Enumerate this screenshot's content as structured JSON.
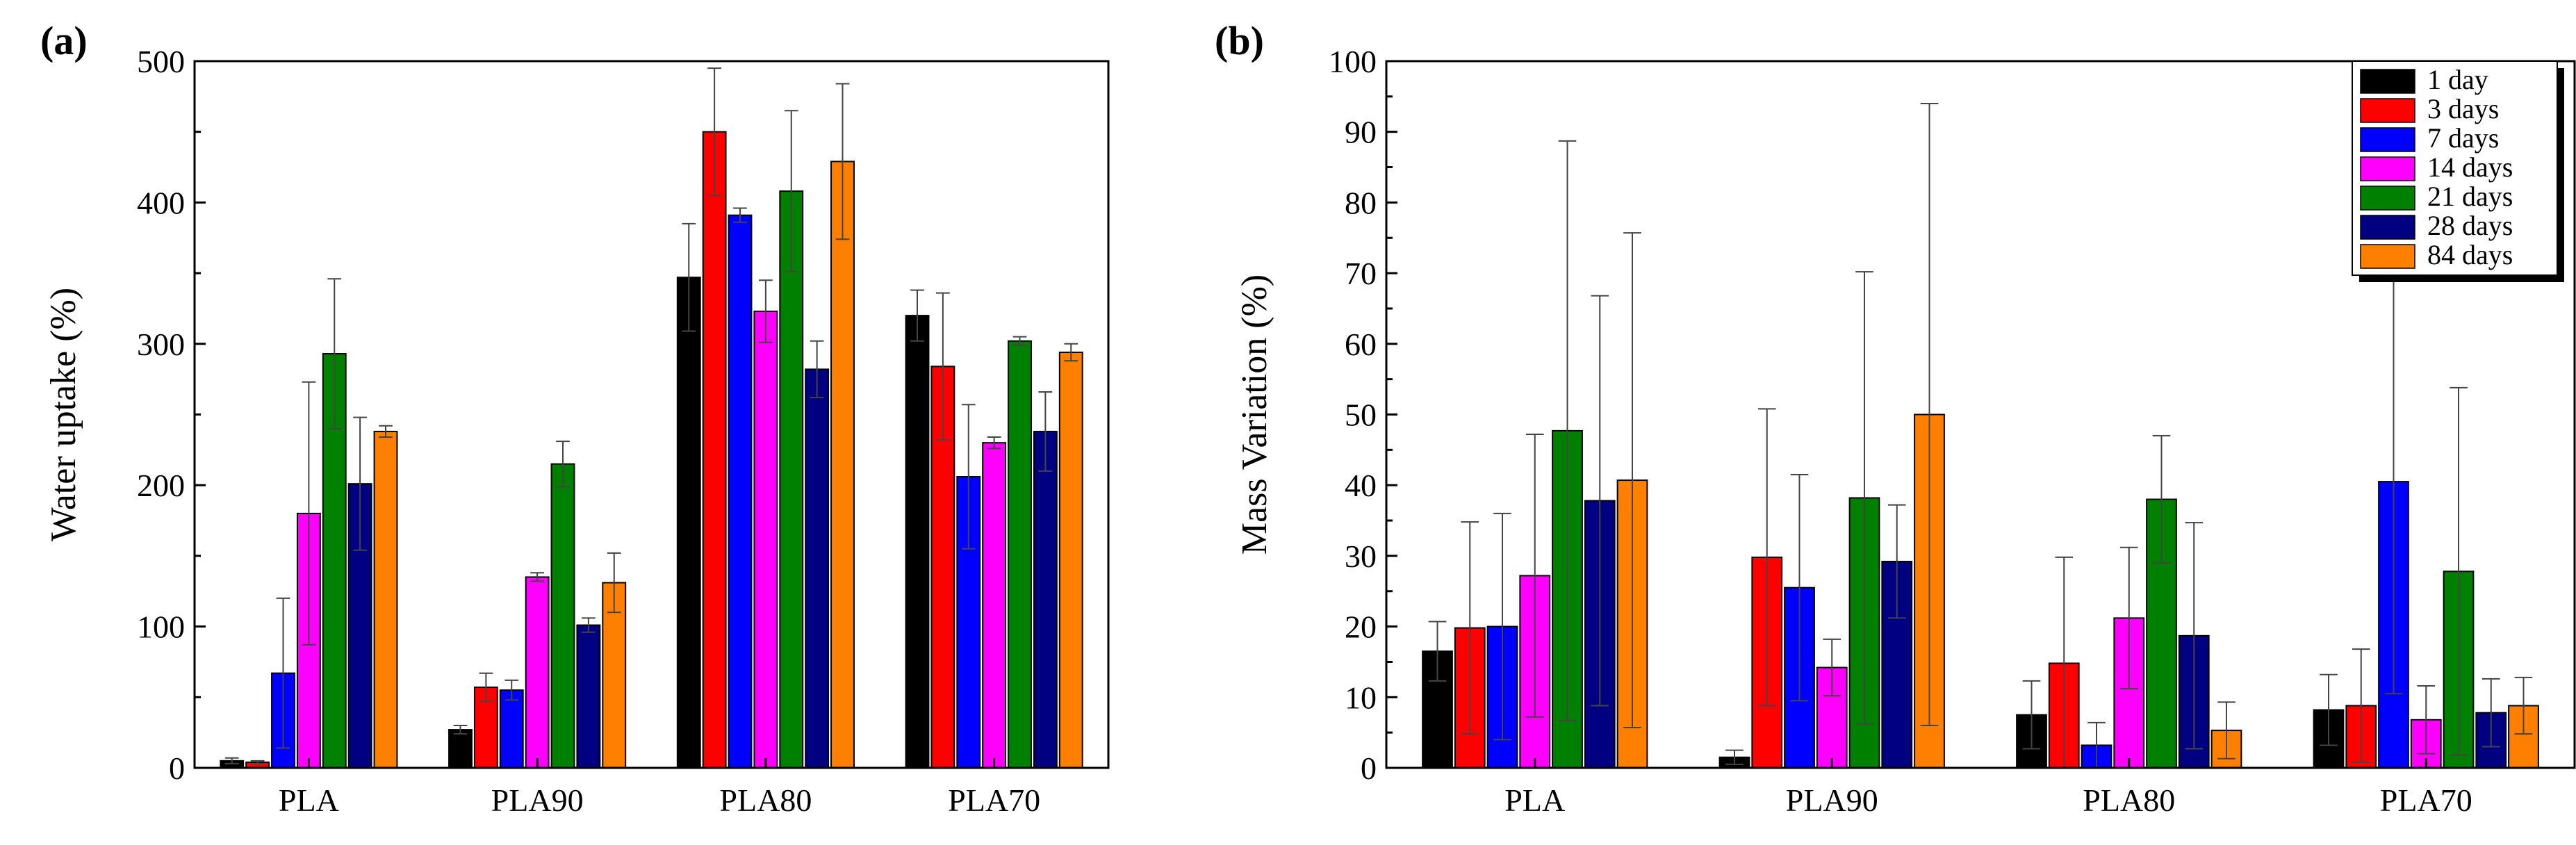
{
  "colors": [
    "#000000",
    "#ff0000",
    "#0000ff",
    "#ff00ff",
    "#008000",
    "#000080",
    "#ff8000"
  ],
  "legend": [
    "1 day",
    "3 days",
    "7 days",
    "14 days",
    "21 days",
    "28 days",
    "84 days"
  ],
  "chart_data": [
    {
      "type": "bar",
      "panel_label": "(a)",
      "title": "",
      "xlabel": "",
      "ylabel": "Water uptake (%)",
      "ylim": [
        0,
        500
      ],
      "yticks": [
        0,
        100,
        200,
        300,
        400,
        500
      ],
      "categories": [
        "PLA",
        "PLA90",
        "PLA80",
        "PLA70"
      ],
      "series": [
        {
          "name": "1 day",
          "values": [
            5,
            27,
            347,
            320
          ],
          "errors": [
            2,
            3,
            38,
            18
          ]
        },
        {
          "name": "3 days",
          "values": [
            4,
            57,
            450,
            284
          ],
          "errors": [
            1,
            10,
            45,
            52
          ]
        },
        {
          "name": "7 days",
          "values": [
            67,
            55,
            391,
            206
          ],
          "errors": [
            53,
            7,
            5,
            51
          ]
        },
        {
          "name": "14 days",
          "values": [
            180,
            135,
            323,
            230
          ],
          "errors": [
            93,
            3,
            22,
            4
          ]
        },
        {
          "name": "21 days",
          "values": [
            293,
            215,
            408,
            302
          ],
          "errors": [
            53,
            16,
            57,
            3
          ]
        },
        {
          "name": "28 days",
          "values": [
            201,
            101,
            282,
            238
          ],
          "errors": [
            47,
            5,
            20,
            28
          ]
        },
        {
          "name": "84 days",
          "values": [
            238,
            131,
            429,
            294
          ],
          "errors": [
            4,
            21,
            55,
            6
          ]
        }
      ]
    },
    {
      "type": "bar",
      "panel_label": "(b)",
      "title": "",
      "xlabel": "",
      "ylabel": "Mass Variation (%)",
      "ylim": [
        0,
        100
      ],
      "yticks": [
        0,
        10,
        20,
        30,
        40,
        50,
        60,
        70,
        80,
        90,
        100
      ],
      "categories": [
        "PLA",
        "PLA90",
        "PLA80",
        "PLA70"
      ],
      "legend_position": "top-right",
      "series": [
        {
          "name": "1 day",
          "values": [
            16.5,
            1.5,
            7.5,
            8.2
          ],
          "errors": [
            4.2,
            1,
            4.8,
            5
          ]
        },
        {
          "name": "3 days",
          "values": [
            19.8,
            29.8,
            14.8,
            8.8
          ],
          "errors": [
            15,
            21,
            15,
            8
          ]
        },
        {
          "name": "7 days",
          "values": [
            20,
            25.5,
            3.2,
            40.5
          ],
          "errors": [
            16,
            16,
            3.2,
            30
          ]
        },
        {
          "name": "14 days",
          "values": [
            27.2,
            14.2,
            21.2,
            6.8
          ],
          "errors": [
            20,
            4,
            10,
            4.8
          ]
        },
        {
          "name": "21 days",
          "values": [
            47.7,
            38.2,
            38,
            27.8
          ],
          "errors": [
            41,
            32,
            9,
            26
          ]
        },
        {
          "name": "28 days",
          "values": [
            37.8,
            29.2,
            18.7,
            7.8
          ],
          "errors": [
            29,
            8,
            16,
            4.8
          ]
        },
        {
          "name": "84 days",
          "values": [
            40.7,
            50,
            5.3,
            8.8
          ],
          "errors": [
            35,
            44,
            4,
            4
          ]
        }
      ]
    }
  ]
}
